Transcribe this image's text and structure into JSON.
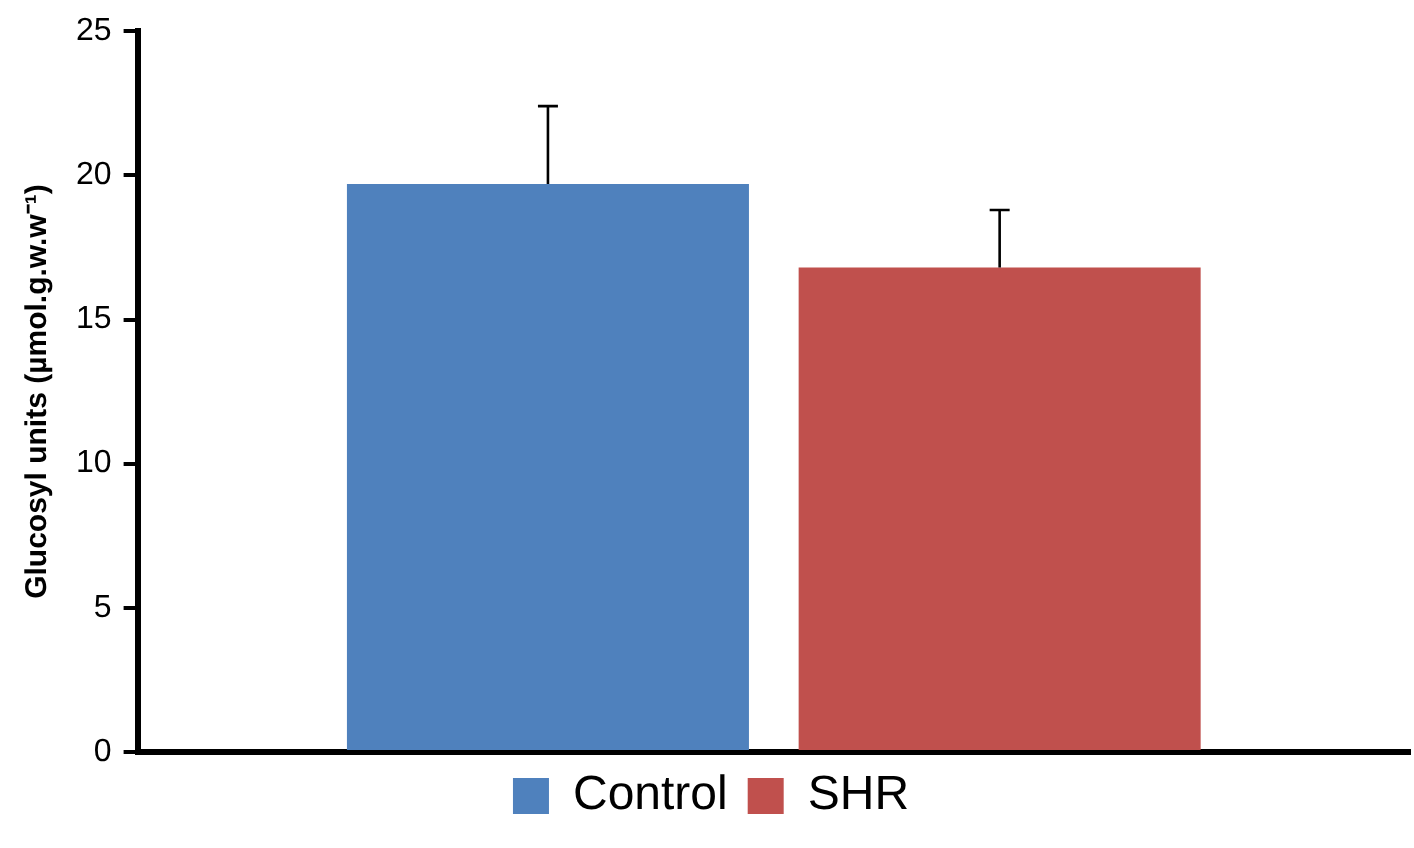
{
  "chart_data": {
    "type": "bar",
    "ylabel": "Glucosyl units (µmol.g.w.w⁻¹)",
    "categories": [
      null
    ],
    "series": [
      {
        "name": "Control",
        "color": "#4f81bd",
        "values": [
          19.7
        ],
        "errors": [
          [
            19.7,
            22.4
          ]
        ]
      },
      {
        "name": "SHR",
        "color": "#c0504d",
        "values": [
          16.8
        ],
        "errors": [
          [
            16.8,
            18.8
          ]
        ]
      }
    ],
    "ylim": [
      0,
      25
    ],
    "yticks": [
      0,
      5,
      10,
      15,
      20,
      25
    ],
    "grid": false,
    "legend": "bottom",
    "tick_labels": "y"
  }
}
